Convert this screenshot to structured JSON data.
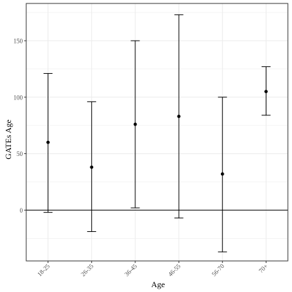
{
  "chart_data": {
    "type": "scatter",
    "xlabel": "Age",
    "ylabel": "GATEs Age",
    "categories": [
      "18-25",
      "26-35",
      "36-45",
      "46-55",
      "56-70",
      "70+"
    ],
    "series": [
      {
        "points": [
          60,
          38,
          76,
          83,
          32,
          105
        ],
        "error_lower": [
          -2,
          -19,
          2,
          -7,
          -37,
          84
        ],
        "error_upper": [
          121,
          96,
          150,
          173,
          100,
          127
        ]
      }
    ],
    "y_ticks": [
      0,
      50,
      100,
      150
    ],
    "ylim": [
      -45,
      183
    ],
    "reference_line_y": 0,
    "grid": true,
    "x_tick_rotation_deg": -45,
    "colors": {
      "marks": "#000000",
      "panel_border": "#333333",
      "grid": "#ebebeb"
    }
  }
}
